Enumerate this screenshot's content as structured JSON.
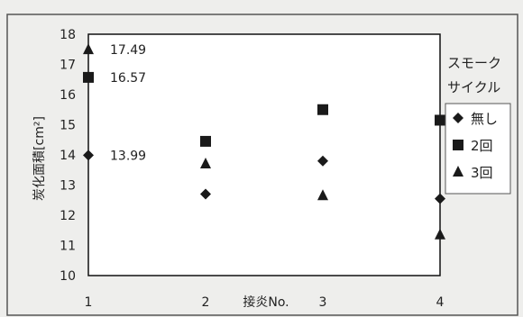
{
  "chart_data": {
    "type": "scatter",
    "title": "",
    "xlabel": "接炎No.",
    "ylabel": "炭化面積[cm²]",
    "x": [
      1,
      2,
      3,
      4
    ],
    "xlim": [
      1,
      4
    ],
    "ylim": [
      10,
      18
    ],
    "ytick_labels": [
      "10",
      "11",
      "12",
      "13",
      "14",
      "15",
      "16",
      "17",
      "18"
    ],
    "xtick_labels": [
      "1",
      "2",
      "3",
      "4"
    ],
    "grid": false,
    "legend_title": [
      "スモーク",
      "サイクル"
    ],
    "legend_position": "right",
    "series": [
      {
        "name": "無し",
        "marker": "diamond",
        "values": [
          13.99,
          12.7,
          13.8,
          12.55
        ]
      },
      {
        "name": "2回",
        "marker": "square",
        "values": [
          16.57,
          14.45,
          15.5,
          15.15
        ]
      },
      {
        "name": "3回",
        "marker": "triangle",
        "values": [
          17.49,
          13.7,
          12.65,
          11.35
        ]
      }
    ],
    "annotations": [
      {
        "x": 1,
        "y": 17.49,
        "text": "17.49"
      },
      {
        "x": 1,
        "y": 16.57,
        "text": "16.57"
      },
      {
        "x": 1,
        "y": 13.99,
        "text": "13.99"
      }
    ]
  }
}
